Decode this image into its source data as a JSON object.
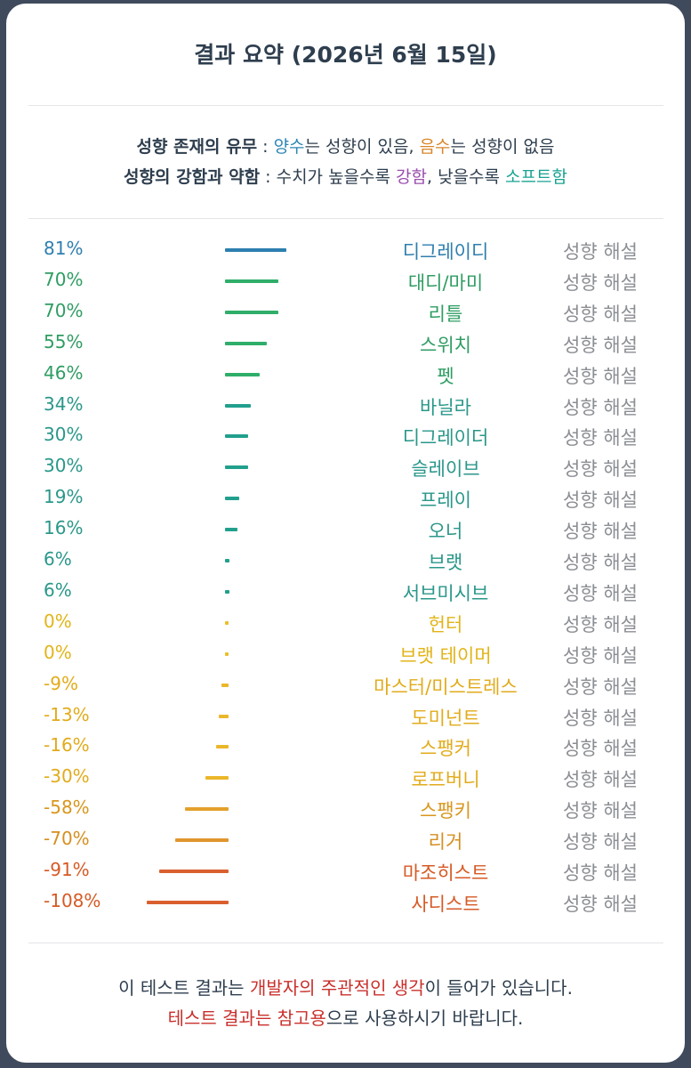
{
  "title": "결과 요약 (2026년 6월 15일)",
  "legend": {
    "line1": {
      "bold": "성향 존재의 유무",
      "sep": " : ",
      "positive": "양수",
      "mid": "는 성향이 있음, ",
      "negative": "음수",
      "end": "는 성향이 없음"
    },
    "line2": {
      "bold": "성향의 강함과 약함",
      "sep": " : 수치가 높을수록 ",
      "strong": "강함",
      "mid": ", 낮을수록 ",
      "soft": "소프트함"
    }
  },
  "link_label": "성향 해설",
  "chart_data": {
    "type": "bar",
    "orientation": "horizontal",
    "categories": [
      "디그레이디",
      "대디/마미",
      "리틀",
      "스위치",
      "펫",
      "바닐라",
      "디그레이더",
      "슬레이브",
      "프레이",
      "오너",
      "브랫",
      "서브미시브",
      "헌터",
      "브랫 테이머",
      "마스터/미스트레스",
      "도미넌트",
      "스팽커",
      "로프버니",
      "스팽키",
      "리거",
      "마조히스트",
      "사디스트"
    ],
    "values": [
      81,
      70,
      70,
      55,
      46,
      34,
      30,
      30,
      19,
      16,
      6,
      6,
      0,
      0,
      -9,
      -13,
      -16,
      -30,
      -58,
      -70,
      -91,
      -108
    ],
    "labels": [
      "81%",
      "70%",
      "70%",
      "55%",
      "46%",
      "34%",
      "30%",
      "30%",
      "19%",
      "16%",
      "6%",
      "6%",
      "0%",
      "0%",
      "-9%",
      "-13%",
      "-16%",
      "-30%",
      "-58%",
      "-70%",
      "-91%",
      "-108%"
    ],
    "colors": [
      "#2d7fb0",
      "#2fae6a",
      "#2fae6a",
      "#2fae6a",
      "#2fae6a",
      "#21a08d",
      "#21a08d",
      "#21a08d",
      "#21a08d",
      "#21a08d",
      "#21a08d",
      "#21a08d",
      "#e8c02a",
      "#e8c02a",
      "#ebb72a",
      "#ebb72a",
      "#ebb72a",
      "#ebb72a",
      "#e3a02c",
      "#e0962d",
      "#d9602e",
      "#d9602e"
    ],
    "label_colors": [
      "#2f7fae",
      "#2f9d63",
      "#2f9d63",
      "#2f9d63",
      "#2f9d63",
      "#2a978a",
      "#2a978a",
      "#2a978a",
      "#2a978a",
      "#2a978a",
      "#2a978a",
      "#2a978a",
      "#e2b418",
      "#e2b418",
      "#e2ab1b",
      "#e2ab1b",
      "#e2ab1b",
      "#e2ab1b",
      "#d9961d",
      "#d58f20",
      "#d65a25",
      "#d65a25"
    ]
  },
  "footer": {
    "line1": {
      "a": "이 테스트 결과는 ",
      "red1": "개발자의 주관적인 생각",
      "b": "이 들어가 있습니다."
    },
    "line2": {
      "red1": "테스트 결과는 참고용",
      "b": "으로 사용하시기 바랍니다."
    }
  }
}
